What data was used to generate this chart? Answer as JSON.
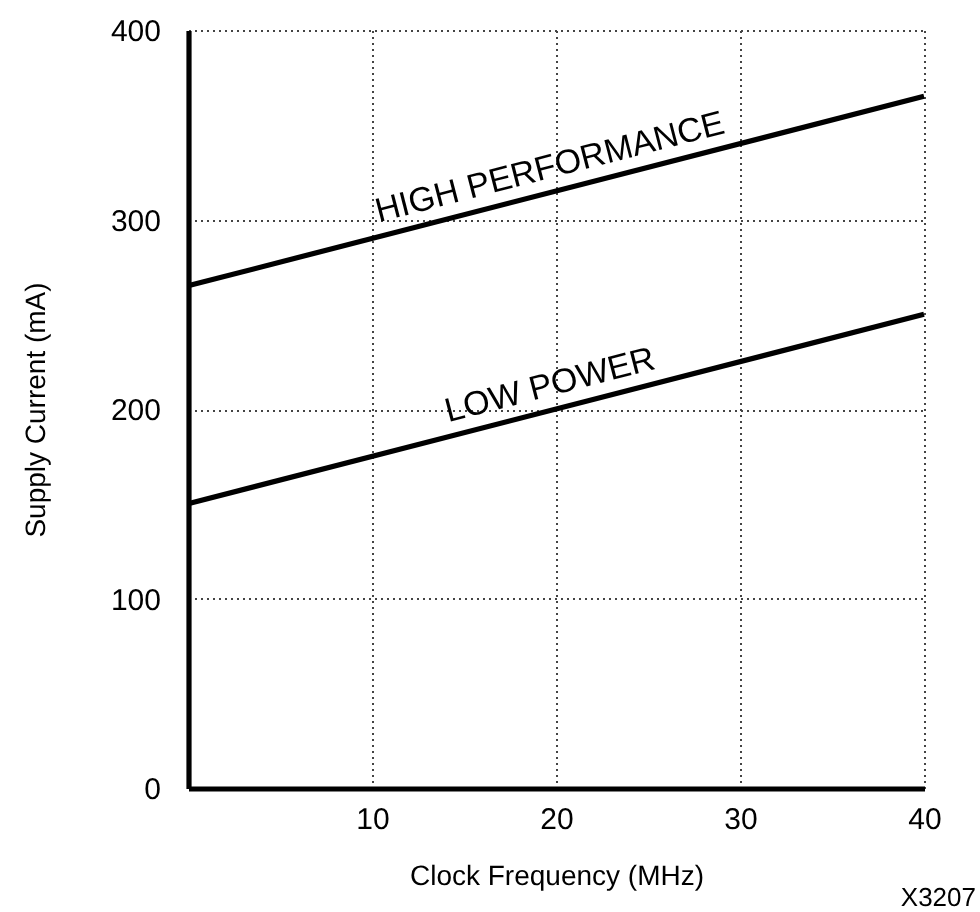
{
  "chart_data": {
    "type": "line",
    "xlabel": "Clock Frequency (MHz)",
    "ylabel": "Supply Current (mA)",
    "x": [
      0,
      40
    ],
    "series": [
      {
        "name": "HIGH PERFORMANCE",
        "color": "#000000",
        "values": [
          265,
          365
        ]
      },
      {
        "name": "LOW POWER",
        "color": "#000000",
        "values": [
          150,
          250
        ]
      }
    ],
    "xlim": [
      0,
      40
    ],
    "ylim": [
      0,
      400
    ],
    "xticks": [
      10,
      20,
      30,
      40
    ],
    "yticks": [
      0,
      100,
      200,
      300,
      400
    ],
    "grid": true,
    "marker": "none",
    "line_style": "solid",
    "annotations": [
      "X3207"
    ]
  }
}
